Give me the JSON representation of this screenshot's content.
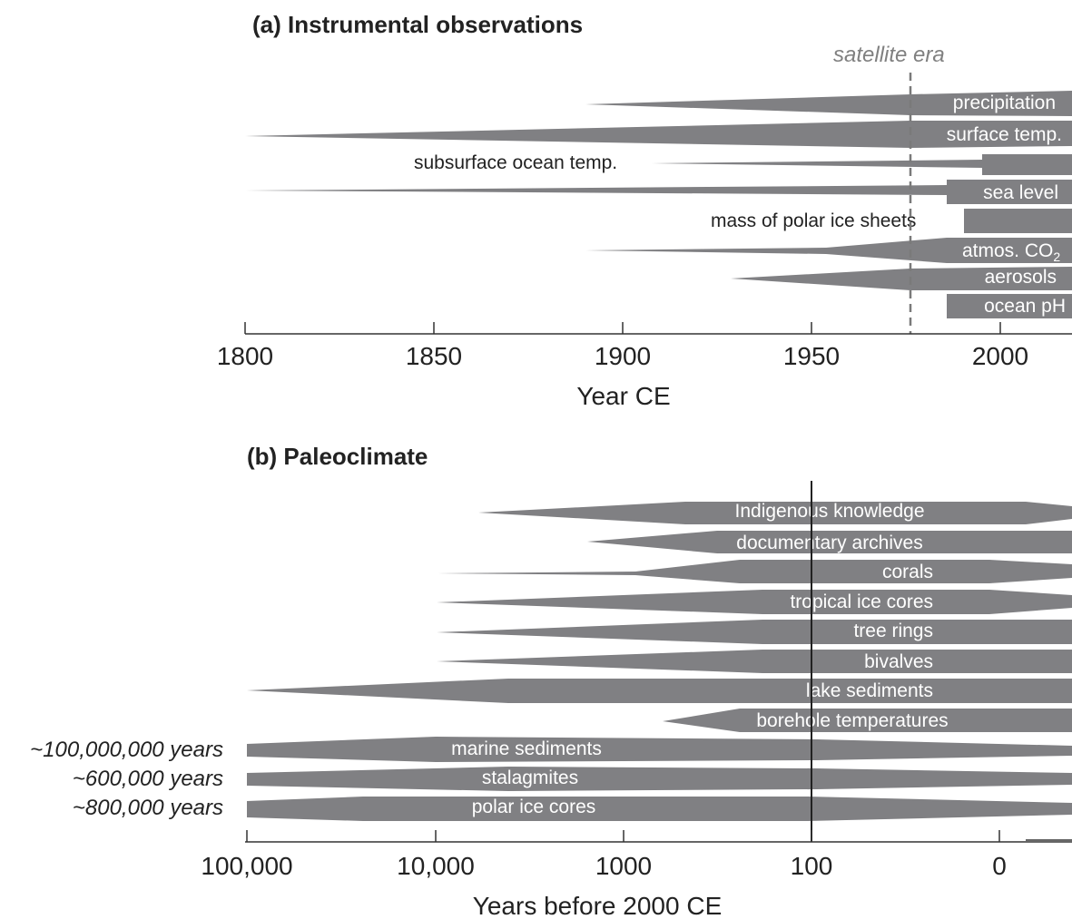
{
  "colors": {
    "bar": "#808083",
    "axis": "#333333",
    "era_line": "#7a7a7a"
  },
  "panel_a": {
    "title": "(a) Instrumental observations",
    "era_label": "satellite era",
    "xlabel": "Year CE",
    "ticks": [
      "1800",
      "1850",
      "1900",
      "1950",
      "2000"
    ],
    "era_year": 1976,
    "bars": [
      {
        "label": "precipitation",
        "start": 1890,
        "full": 1976,
        "label_inside": true
      },
      {
        "label": "surface temp.",
        "start": 1800,
        "full": 1976,
        "label_inside": true
      },
      {
        "label": "subsurface ocean temp.",
        "start": 1908,
        "full": 1995,
        "label_inside": false
      },
      {
        "label": "sea level",
        "start": 1800,
        "full": 1986,
        "label_inside": true
      },
      {
        "label": "mass of polar ice sheets",
        "start": 1992,
        "full": 1992,
        "label_inside": false
      },
      {
        "label": "atmos. CO",
        "label_sub": "2",
        "start": 1890,
        "full": 1987,
        "label_inside": true
      },
      {
        "label": "aerosols",
        "start": 1930,
        "full": 1976,
        "label_inside": true
      },
      {
        "label": "ocean pH",
        "start": 1986,
        "full": 1986,
        "label_inside": true
      }
    ]
  },
  "panel_b": {
    "title": "(b) Paleoclimate",
    "xlabel": "Years before 2000 CE",
    "ticks": [
      "100,000",
      "10,000",
      "1000",
      "100",
      "0"
    ],
    "bars": [
      {
        "label": "Indigenous knowledge"
      },
      {
        "label": "documentary archives"
      },
      {
        "label": "corals"
      },
      {
        "label": "tropical ice cores"
      },
      {
        "label": "tree rings"
      },
      {
        "label": "bivalves"
      },
      {
        "label": "lake sediments"
      },
      {
        "label": "borehole temperatures"
      },
      {
        "label": "marine sediments",
        "extent_label": "~100,000,000 years"
      },
      {
        "label": "stalagmites",
        "extent_label": "~600,000 years"
      },
      {
        "label": "polar ice cores",
        "extent_label": "~800,000 years"
      }
    ]
  }
}
